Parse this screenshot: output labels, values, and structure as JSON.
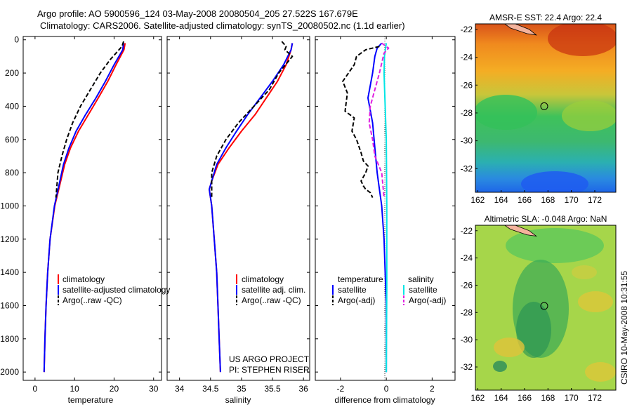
{
  "title": {
    "line1": "Argo profile: AO 5900596_124 03-May-2008 20080504_205 27.522S 167.679E",
    "line2": "Climatology: CARS2006. Satellite-adjusted climatology: synTS_20080502.nc (1.1d earlier)"
  },
  "credits": {
    "project": "US ARGO PROJECT",
    "pi": "PI: STEPHEN RISER",
    "stamp": "CSIRO 10-May-2008 10:31:55"
  },
  "colors": {
    "climatology": "#ff0000",
    "satellite": "#0000ff",
    "argo": "#000000",
    "sal_satellite": "#00e5e5",
    "sal_argo": "#e020e0"
  },
  "chart_data": [
    {
      "type": "line",
      "id": "temperature",
      "xlabel": "temperature",
      "xlim": [
        -3,
        32
      ],
      "ylim": [
        2050,
        -20
      ],
      "xticks": [
        0,
        10,
        20,
        30
      ],
      "yticks": [
        0,
        200,
        400,
        600,
        800,
        1000,
        1200,
        1400,
        1600,
        1800,
        2000
      ],
      "legend": [
        "climatology",
        "satellite-adjusted climatology",
        "Argo(..raw -QC)"
      ],
      "series": [
        {
          "name": "climatology",
          "color": "#ff0000",
          "style": "solid",
          "x": [
            22.8,
            22.5,
            20.5,
            18.4,
            16.0,
            13.5,
            11.0,
            9.0,
            7.5,
            6.5,
            5.0,
            3.8,
            3.2,
            2.8,
            2.5,
            2.3
          ],
          "y": [
            20,
            60,
            150,
            250,
            350,
            450,
            550,
            650,
            750,
            850,
            1000,
            1200,
            1400,
            1600,
            1800,
            2000
          ]
        },
        {
          "name": "satellite-adjusted climatology",
          "color": "#0000ff",
          "style": "solid",
          "x": [
            22.4,
            22.2,
            20.0,
            17.8,
            15.4,
            12.8,
            10.4,
            8.6,
            7.2,
            6.3,
            4.9,
            3.8,
            3.2,
            2.8,
            2.5,
            2.3
          ],
          "y": [
            20,
            60,
            150,
            250,
            350,
            450,
            550,
            650,
            750,
            850,
            1000,
            1200,
            1400,
            1600,
            1800,
            2000
          ]
        },
        {
          "name": "Argo(..raw -QC)",
          "color": "#000000",
          "style": "dashed",
          "x": [
            22.4,
            22.0,
            19.0,
            16.5,
            14.0,
            11.5,
            9.5,
            8.0,
            6.8,
            5.8,
            5.3
          ],
          "y": [
            10,
            40,
            120,
            200,
            300,
            400,
            500,
            600,
            700,
            800,
            950
          ]
        }
      ]
    },
    {
      "type": "line",
      "id": "salinity",
      "xlabel": "salinity",
      "xlim": [
        33.8,
        36.1
      ],
      "ylim": [
        2050,
        -20
      ],
      "xticks": [
        34,
        34.5,
        35,
        35.5,
        36
      ],
      "xticklabels": [
        "34",
        "34.5",
        "35",
        "35.5",
        "36"
      ],
      "legend": [
        "climatology",
        "satellite adj. clim.",
        "Argo(..raw -QC)"
      ],
      "series": [
        {
          "name": "climatology",
          "color": "#ff0000",
          "style": "solid",
          "x": [
            35.82,
            35.8,
            35.72,
            35.58,
            35.4,
            35.22,
            35.0,
            34.8,
            34.62,
            34.52,
            34.48,
            34.52,
            34.56,
            34.6,
            34.62,
            34.64,
            34.66
          ],
          "y": [
            20,
            60,
            150,
            250,
            350,
            450,
            550,
            650,
            750,
            850,
            900,
            1000,
            1200,
            1400,
            1600,
            1800,
            2000
          ]
        },
        {
          "name": "satellite adj. clim.",
          "color": "#0000ff",
          "style": "solid",
          "x": [
            35.82,
            35.8,
            35.68,
            35.5,
            35.3,
            35.1,
            34.92,
            34.75,
            34.6,
            34.52,
            34.48,
            34.52,
            34.56,
            34.6,
            34.62,
            34.64,
            34.66
          ],
          "y": [
            20,
            60,
            150,
            250,
            350,
            450,
            550,
            650,
            750,
            850,
            900,
            1000,
            1200,
            1400,
            1600,
            1800,
            2000
          ]
        },
        {
          "name": "Argo(..raw -QC)",
          "color": "#000000",
          "style": "dashed",
          "x": [
            35.65,
            35.72,
            35.7,
            35.82,
            35.6,
            35.45,
            35.2,
            34.95,
            34.75,
            34.6,
            34.52,
            34.52
          ],
          "y": [
            10,
            40,
            60,
            100,
            200,
            300,
            400,
            500,
            600,
            700,
            800,
            950
          ]
        }
      ]
    },
    {
      "type": "line",
      "id": "difference",
      "xlabel": "difference from climatology",
      "xlim": [
        -3.1,
        3.0
      ],
      "ylim": [
        2050,
        -20
      ],
      "xticks": [
        -2,
        0,
        2
      ],
      "legend_left_title": "temperature",
      "legend_right_title": "salinity",
      "legend": [
        "satellite",
        "Argo(-adj)",
        "satellite",
        "Argo(-adj)"
      ],
      "series": [
        {
          "name": "temperature satellite",
          "color": "#0000ff",
          "style": "solid",
          "x": [
            -0.2,
            -0.4,
            -0.5,
            -0.6,
            -0.8,
            -0.6,
            -0.5,
            -0.4,
            -0.3,
            -0.2,
            -0.1,
            0.0,
            0.0
          ],
          "y": [
            20,
            50,
            100,
            200,
            350,
            500,
            650,
            800,
            900,
            1000,
            1200,
            1600,
            2000
          ]
        },
        {
          "name": "temperature Argo(-adj)",
          "color": "#000000",
          "style": "dashed",
          "x": [
            -0.3,
            -0.9,
            -1.3,
            -1.4,
            -1.9,
            -1.7,
            -1.8,
            -1.4,
            -1.5,
            -1.3,
            -1.1,
            -1.0,
            -0.8,
            -0.9,
            -1.1,
            -1.0,
            -0.9,
            -0.7,
            -0.6
          ],
          "y": [
            40,
            60,
            100,
            150,
            250,
            320,
            430,
            470,
            550,
            600,
            680,
            730,
            760,
            800,
            850,
            880,
            900,
            920,
            950
          ]
        },
        {
          "name": "salinity satellite",
          "color": "#00e5e5",
          "style": "solid",
          "x": [
            0.0,
            -0.08,
            -0.1,
            -0.05,
            0.0,
            0.02,
            0.02,
            0.0
          ],
          "y": [
            20,
            100,
            200,
            400,
            600,
            1000,
            1500,
            2000
          ]
        },
        {
          "name": "salinity Argo(-adj)",
          "color": "#e020e0",
          "style": "dashed",
          "x": [
            -0.2,
            0.1,
            -0.1,
            -0.3,
            -0.7,
            -0.75,
            -0.6,
            -0.5,
            -0.2,
            -0.1
          ],
          "y": [
            20,
            50,
            80,
            200,
            400,
            500,
            600,
            700,
            800,
            950
          ]
        }
      ]
    }
  ],
  "maps": [
    {
      "id": "sst",
      "title": "AMSR-E SST: 22.4 Argo: 22.4",
      "xlim": [
        161.8,
        173.8
      ],
      "ylim": [
        -33.7,
        -21.6
      ],
      "xticks": [
        162,
        164,
        166,
        168,
        170,
        172
      ],
      "yticks": [
        -22,
        -24,
        -26,
        -28,
        -30,
        -32
      ],
      "marker": {
        "lon": 167.68,
        "lat": -27.52
      },
      "land": [
        {
          "lon": [
            164.3,
            165.2,
            166.4,
            167.0,
            166.2,
            164.8
          ],
          "lat": [
            -21.6,
            -21.6,
            -22.0,
            -22.4,
            -22.3,
            -21.9
          ]
        }
      ]
    },
    {
      "id": "sla",
      "title": "Altimetric SLA: -0.048 Argo: NaN",
      "xlim": [
        161.8,
        173.8
      ],
      "ylim": [
        -33.7,
        -21.6
      ],
      "xticks": [
        162,
        164,
        166,
        168,
        170,
        172
      ],
      "yticks": [
        -22,
        -24,
        -26,
        -28,
        -30,
        -32
      ],
      "marker": {
        "lon": 167.68,
        "lat": -27.52
      },
      "land": [
        {
          "lon": [
            164.3,
            165.2,
            166.4,
            167.0,
            166.2,
            164.8
          ],
          "lat": [
            -21.6,
            -21.6,
            -22.0,
            -22.4,
            -22.3,
            -21.9
          ]
        }
      ]
    }
  ]
}
